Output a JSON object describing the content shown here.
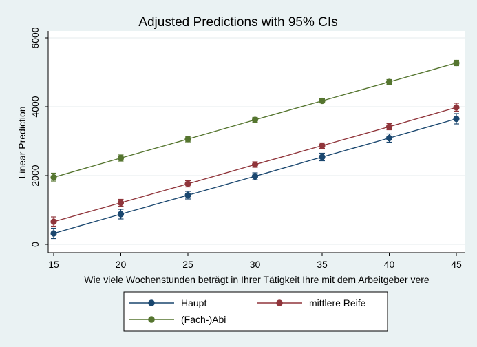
{
  "chart_data": {
    "type": "line",
    "title": "Adjusted Predictions with 95% CIs",
    "xlabel": "Wie viele Wochenstunden beträgt in Ihrer Tätigkeit Ihre mit dem Arbeitgeber vere",
    "ylabel": "Linear Prediction",
    "x": [
      15,
      20,
      25,
      30,
      35,
      40,
      45
    ],
    "x_ticks": [
      15,
      20,
      25,
      30,
      35,
      40,
      45
    ],
    "y_ticks": [
      0,
      2000,
      4000,
      6000
    ],
    "xlim": [
      15,
      45
    ],
    "ylim": [
      0,
      6000
    ],
    "grid": true,
    "legend_position": "bottom",
    "series": [
      {
        "name": "Haupt",
        "color": "#1a476f",
        "values": [
          320,
          880,
          1430,
          1980,
          2540,
          3090,
          3650
        ],
        "ci_low": [
          170,
          740,
          1320,
          1880,
          2430,
          2970,
          3500
        ],
        "ci_high": [
          470,
          1020,
          1540,
          2080,
          2650,
          3210,
          3800
        ]
      },
      {
        "name": "mittlere Reife",
        "color": "#90353b",
        "values": [
          660,
          1210,
          1760,
          2320,
          2870,
          3420,
          3980
        ],
        "ci_low": [
          530,
          1110,
          1670,
          2240,
          2790,
          3330,
          3870
        ],
        "ci_high": [
          800,
          1310,
          1850,
          2400,
          2950,
          3510,
          4100
        ]
      },
      {
        "name": "(Fach-)Abi",
        "color": "#55752f",
        "values": [
          1950,
          2510,
          3060,
          3620,
          4170,
          4720,
          5270
        ],
        "ci_low": [
          1840,
          2420,
          2980,
          3550,
          4110,
          4650,
          5190
        ],
        "ci_high": [
          2070,
          2600,
          3140,
          3690,
          4230,
          4790,
          5350
        ]
      }
    ]
  }
}
